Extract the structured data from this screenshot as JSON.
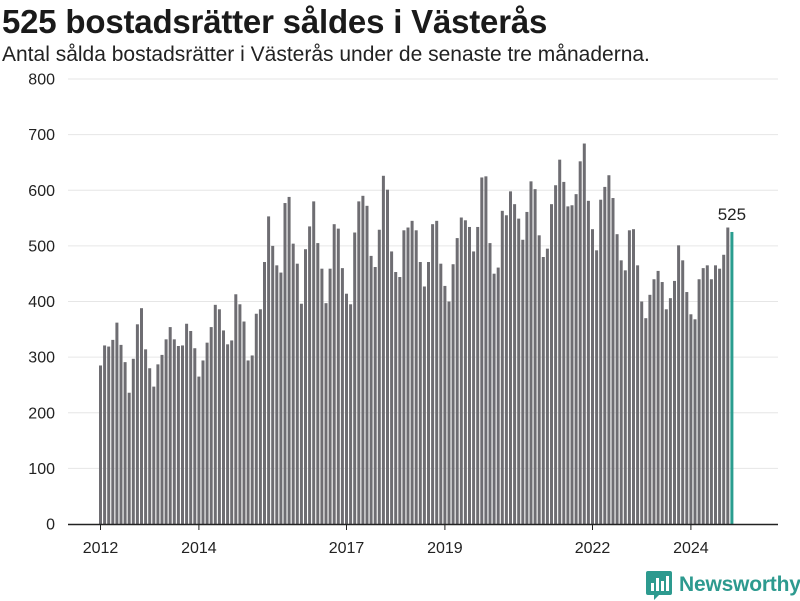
{
  "header": {
    "title": "525 bostadsrätter såldes i Västerås",
    "subtitle": "Antal sålda bostadsrätter i Västerås under de senaste tre månaderna."
  },
  "brand": {
    "name": "Newsworthy",
    "color": "#2d9a8f"
  },
  "colors": {
    "bar": "#6e6d72",
    "highlight": "#2a9d8f",
    "grid": "#e6e6e6",
    "axis": "#222222"
  },
  "chart_data": {
    "type": "bar",
    "title": "525 bostadsrätter såldes i Västerås",
    "subtitle": "Antal sålda bostadsrätter i Västerås under de senaste tre månaderna.",
    "xlabel": "",
    "ylabel": "",
    "ylim": [
      0,
      800
    ],
    "yticks": [
      0,
      100,
      200,
      300,
      400,
      500,
      600,
      700,
      800
    ],
    "grid": true,
    "xticks": [
      "2012",
      "2014",
      "2017",
      "2019",
      "2022",
      "2024"
    ],
    "xtick_index": [
      0,
      24,
      60,
      84,
      120,
      144
    ],
    "highlight_index": 154,
    "highlight_label": "525",
    "values": [
      285,
      321,
      319,
      331,
      362,
      322,
      291,
      236,
      297,
      359,
      388,
      314,
      280,
      247,
      287,
      304,
      332,
      354,
      332,
      320,
      321,
      360,
      347,
      316,
      265,
      294,
      326,
      354,
      394,
      386,
      348,
      323,
      330,
      413,
      395,
      364,
      294,
      303,
      378,
      386,
      471,
      553,
      500,
      465,
      452,
      577,
      588,
      504,
      468,
      396,
      494,
      535,
      580,
      505,
      459,
      397,
      459,
      539,
      531,
      460,
      414,
      395,
      524,
      580,
      590,
      572,
      482,
      462,
      529,
      626,
      601,
      490,
      453,
      444,
      528,
      533,
      545,
      528,
      471,
      427,
      471,
      539,
      545,
      468,
      428,
      400,
      467,
      514,
      551,
      546,
      534,
      490,
      534,
      623,
      625,
      505,
      450,
      461,
      563,
      555,
      598,
      575,
      549,
      511,
      561,
      616,
      602,
      519,
      480,
      495,
      575,
      609,
      655,
      615,
      571,
      573,
      593,
      652,
      684,
      581,
      530,
      492,
      583,
      606,
      627,
      586,
      521,
      474,
      456,
      528,
      530,
      465,
      400,
      370,
      412,
      440,
      455,
      435,
      386,
      406,
      437,
      501,
      474,
      417,
      377,
      368,
      440,
      460,
      465,
      440,
      465,
      459,
      484,
      533,
      525
    ]
  }
}
